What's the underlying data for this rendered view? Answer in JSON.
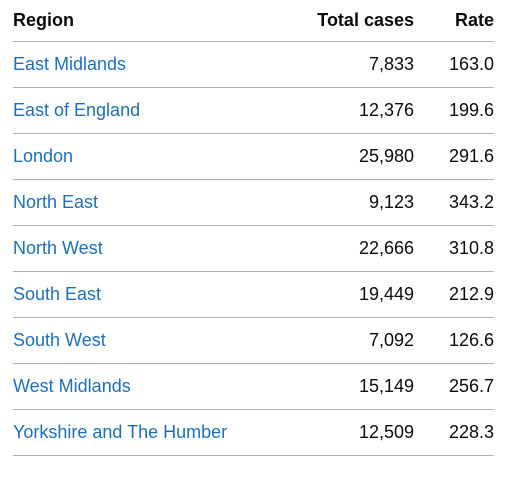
{
  "table": {
    "headers": {
      "region": "Region",
      "total_cases": "Total cases",
      "rate": "Rate"
    },
    "rows": [
      {
        "region": "East Midlands",
        "total_cases": "7,833",
        "rate": "163.0"
      },
      {
        "region": "East of England",
        "total_cases": "12,376",
        "rate": "199.6"
      },
      {
        "region": "London",
        "total_cases": "25,980",
        "rate": "291.6"
      },
      {
        "region": "North East",
        "total_cases": "9,123",
        "rate": "343.2"
      },
      {
        "region": "North West",
        "total_cases": "22,666",
        "rate": "310.8"
      },
      {
        "region": "South East",
        "total_cases": "19,449",
        "rate": "212.9"
      },
      {
        "region": "South West",
        "total_cases": "7,092",
        "rate": "126.6"
      },
      {
        "region": "West Midlands",
        "total_cases": "15,149",
        "rate": "256.7"
      },
      {
        "region": "Yorkshire and The Humber",
        "total_cases": "12,509",
        "rate": "228.3"
      }
    ]
  },
  "colors": {
    "link": "#1d70b8",
    "text": "#0b0c0c",
    "border": "#b1b4b6"
  }
}
